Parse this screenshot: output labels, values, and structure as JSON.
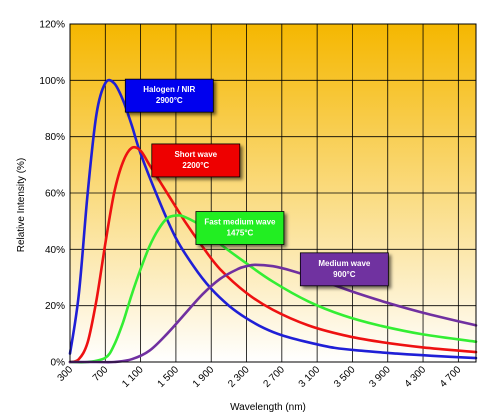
{
  "chart_data": {
    "type": "line",
    "title": "",
    "xlabel": "Wavelength (nm)",
    "ylabel": "Relative Intensity (%)",
    "xlim": [
      300,
      4900
    ],
    "ylim": [
      0,
      120
    ],
    "grid": true,
    "x_ticks": [
      300,
      700,
      1100,
      1500,
      1900,
      2300,
      2700,
      3100,
      3500,
      3900,
      4300,
      4700
    ],
    "x_tick_labels": [
      "300",
      "700",
      "1 100",
      "1 500",
      "1 900",
      "2 300",
      "2 700",
      "3 100",
      "3 500",
      "3 900",
      "4 300",
      "4 700"
    ],
    "y_ticks": [
      0,
      20,
      40,
      60,
      80,
      100,
      120
    ],
    "y_tick_labels": [
      "0%",
      "20%",
      "40%",
      "60%",
      "80%",
      "100%",
      "120%"
    ],
    "background": {
      "top_color": "#f5b700",
      "bottom_color": "#ffffff"
    },
    "series": [
      {
        "name": "Halogen / NIR",
        "color": "#1f1fd6",
        "x": [
          300,
          400,
          500,
          600,
          700,
          800,
          900,
          1000,
          1100,
          1300,
          1500,
          1700,
          1900,
          2100,
          2300,
          2500,
          2700,
          3000,
          3300,
          3600,
          4000,
          4400,
          4900
        ],
        "y": [
          3,
          24,
          60,
          88,
          99,
          99,
          93,
          84,
          74,
          58,
          44,
          34,
          26,
          20,
          15.5,
          12,
          9.5,
          7,
          5,
          4,
          3,
          2.2,
          1.4
        ]
      },
      {
        "name": "Short wave",
        "color": "#ee1111",
        "x": [
          300,
          400,
          500,
          600,
          700,
          800,
          900,
          1000,
          1100,
          1200,
          1400,
          1600,
          1800,
          2000,
          2300,
          2600,
          3000,
          3400,
          3800,
          4300,
          4900
        ],
        "y": [
          0,
          1,
          7,
          22,
          42,
          60,
          71,
          76,
          75,
          70,
          60,
          50,
          41,
          33,
          24.5,
          18.5,
          13,
          9.5,
          7.2,
          5.2,
          3.5
        ]
      },
      {
        "name": "Fast medium wave",
        "color": "#33ee33",
        "x": [
          300,
          500,
          700,
          800,
          900,
          1000,
          1100,
          1200,
          1300,
          1400,
          1500,
          1600,
          1800,
          2000,
          2300,
          2600,
          3000,
          3400,
          3800,
          4300,
          4900
        ],
        "y": [
          0,
          0,
          1.5,
          6,
          14,
          24,
          33,
          41,
          47,
          51,
          52,
          51.5,
          48,
          42,
          35,
          28.5,
          21.5,
          16.5,
          13,
          9.8,
          7.2
        ]
      },
      {
        "name": "Medium wave",
        "color": "#7030a0",
        "x": [
          300,
          600,
          800,
          1000,
          1200,
          1400,
          1600,
          1800,
          2000,
          2200,
          2300,
          2400,
          2600,
          2800,
          3100,
          3500,
          3900,
          4300,
          4900
        ],
        "y": [
          0,
          0,
          0,
          1,
          4,
          10,
          17,
          24,
          29.5,
          33,
          34,
          34.5,
          34,
          32.5,
          29.5,
          25,
          21,
          17.5,
          13
        ]
      }
    ],
    "annotations": [
      {
        "series": "Halogen / NIR",
        "lines": [
          "Halogen / NIR",
          "2900°C"
        ],
        "fill": "#0000ee"
      },
      {
        "series": "Short wave",
        "lines": [
          "Short wave",
          "2200°C"
        ],
        "fill": "#ee0000"
      },
      {
        "series": "Fast medium wave",
        "lines": [
          "Fast medium wave",
          "1475°C"
        ],
        "fill": "#22ee22"
      },
      {
        "series": "Medium wave",
        "lines": [
          "Medium wave",
          "900°C"
        ],
        "fill": "#7030a0"
      }
    ]
  }
}
